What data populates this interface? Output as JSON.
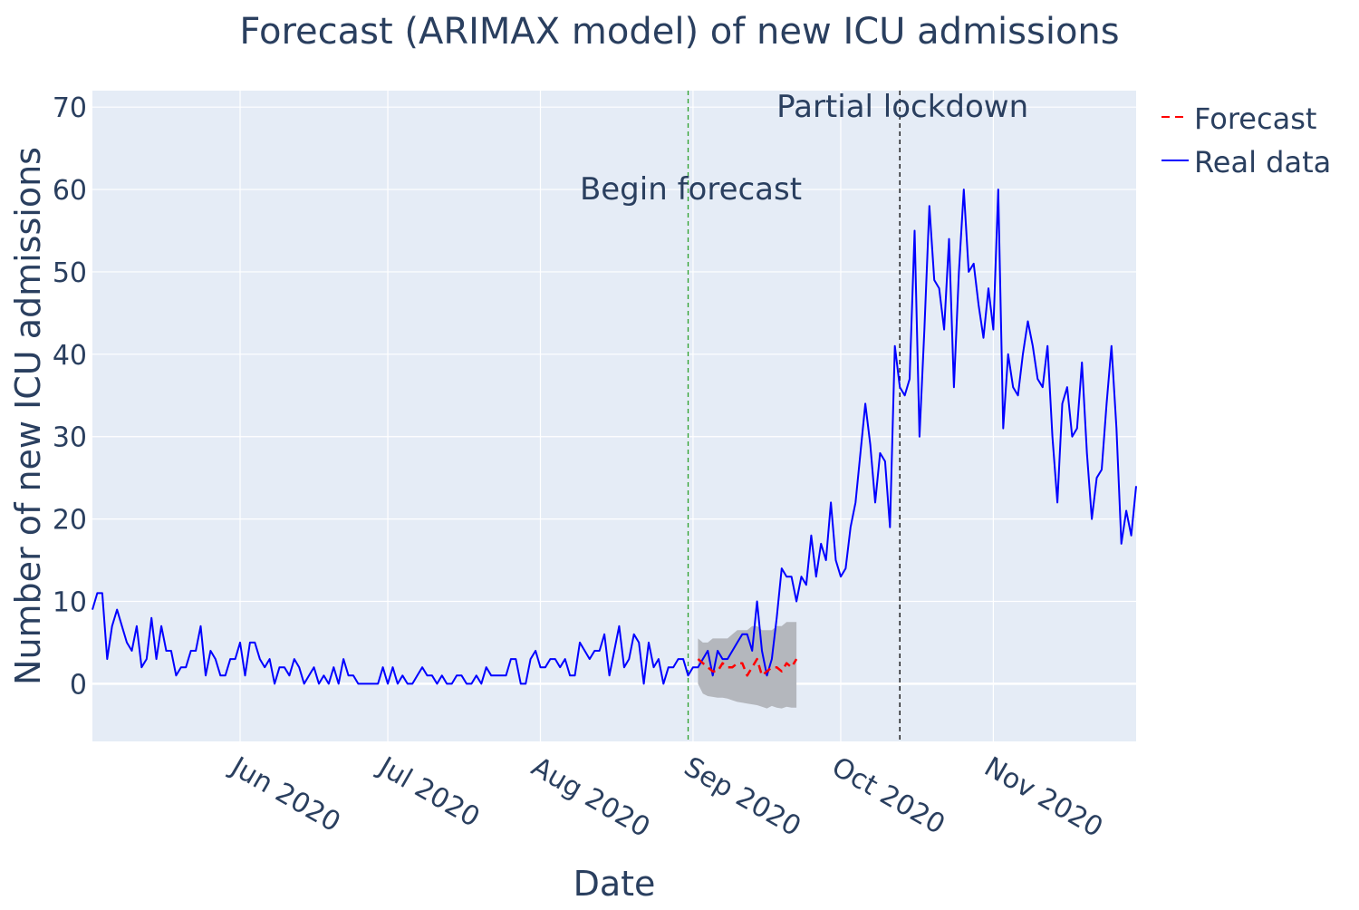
{
  "chart_data": {
    "type": "line",
    "title": "Forecast (ARIMAX model) of new ICU admissions",
    "xlabel": "Date",
    "ylabel": "Number of new ICU admissions",
    "x_range": [
      "2020-05-02",
      "2020-11-30"
    ],
    "ylim": [
      -7,
      72
    ],
    "x_ticks": [
      {
        "date": "2020-06-01",
        "label": "Jun 2020"
      },
      {
        "date": "2020-07-01",
        "label": "Jul 2020"
      },
      {
        "date": "2020-08-01",
        "label": "Aug 2020"
      },
      {
        "date": "2020-09-01",
        "label": "Sep 2020"
      },
      {
        "date": "2020-10-01",
        "label": "Oct 2020"
      },
      {
        "date": "2020-11-01",
        "label": "Nov 2020"
      }
    ],
    "y_ticks": [
      0,
      10,
      20,
      30,
      40,
      50,
      60,
      70
    ],
    "grid": true,
    "legend_position": "top-right",
    "background": "#e5ecf6",
    "series": [
      {
        "name": "Real data",
        "style": "solid",
        "color": "#0000ff",
        "start": "2020-05-02",
        "values": [
          9,
          11,
          11,
          3,
          7,
          9,
          7,
          5,
          4,
          7,
          2,
          3,
          8,
          3,
          7,
          4,
          4,
          1,
          2,
          2,
          4,
          4,
          7,
          1,
          4,
          3,
          1,
          1,
          3,
          3,
          5,
          1,
          5,
          5,
          3,
          2,
          3,
          0,
          2,
          2,
          1,
          3,
          2,
          0,
          1,
          2,
          0,
          1,
          0,
          2,
          0,
          3,
          1,
          1,
          0,
          0,
          0,
          0,
          0,
          2,
          0,
          2,
          0,
          1,
          0,
          0,
          1,
          2,
          1,
          1,
          0,
          1,
          0,
          0,
          1,
          1,
          0,
          0,
          1,
          0,
          2,
          1,
          1,
          1,
          1,
          3,
          3,
          0,
          0,
          3,
          4,
          2,
          2,
          3,
          3,
          2,
          3,
          1,
          1,
          5,
          4,
          3,
          4,
          4,
          6,
          1,
          4,
          7,
          2,
          3,
          6,
          5,
          0,
          5,
          2,
          3,
          0,
          2,
          2,
          3,
          3,
          1,
          2,
          2,
          3,
          4,
          1,
          4,
          3,
          3,
          4,
          5,
          6,
          6,
          4,
          10,
          4,
          1,
          3,
          8,
          14,
          13,
          13,
          10,
          13,
          12,
          18,
          13,
          17,
          15,
          22,
          15,
          13,
          14,
          19,
          22,
          28,
          34,
          29,
          22,
          28,
          27,
          19,
          41,
          36,
          35,
          37,
          55,
          30,
          43,
          58,
          49,
          48,
          43,
          54,
          36,
          50,
          60,
          50,
          51,
          46,
          42,
          48,
          43,
          60,
          31,
          40,
          36,
          35,
          40,
          44,
          41,
          37,
          36,
          41,
          30,
          22,
          34,
          36,
          30,
          31,
          39,
          28,
          20,
          25,
          26,
          34,
          41,
          31,
          17,
          21,
          18,
          24
        ]
      },
      {
        "name": "Forecast",
        "style": "dashed",
        "color": "#ff0000",
        "start": "2020-09-02",
        "values": [
          3,
          2.5,
          2,
          1.5,
          1.5,
          2.5,
          2,
          2,
          2.5,
          2.5,
          1,
          2,
          3,
          1,
          1.5,
          2,
          2,
          1.5,
          2.5,
          2,
          3
        ],
        "band_upper": [
          5.5,
          5,
          5,
          5.5,
          5.5,
          5.5,
          5.5,
          6,
          6.5,
          6.5,
          6.5,
          7,
          7,
          6.5,
          6.5,
          6.5,
          7,
          7,
          7.5,
          7.5,
          7.5
        ],
        "band_lower": [
          0,
          -1.2,
          -1.5,
          -1.6,
          -1.7,
          -1.7,
          -1.8,
          -2,
          -2.2,
          -2.3,
          -2.4,
          -2.5,
          -2.6,
          -2.8,
          -3,
          -2.7,
          -2.9,
          -3,
          -2.8,
          -2.9,
          -2.9
        ]
      }
    ],
    "band_color": "#b4b7bd",
    "annotations": [
      {
        "date": "2020-08-31",
        "text": "Begin forecast",
        "line_color": "#2ca02c",
        "text_y": 60
      },
      {
        "date": "2020-10-13",
        "text": "Partial lockdown",
        "line_color": "#000000",
        "text_y": 70
      }
    ],
    "legend": [
      {
        "label": "Forecast",
        "style": "dashed",
        "color": "#ff0000"
      },
      {
        "label": "Real data",
        "style": "solid",
        "color": "#0000ff"
      }
    ]
  }
}
